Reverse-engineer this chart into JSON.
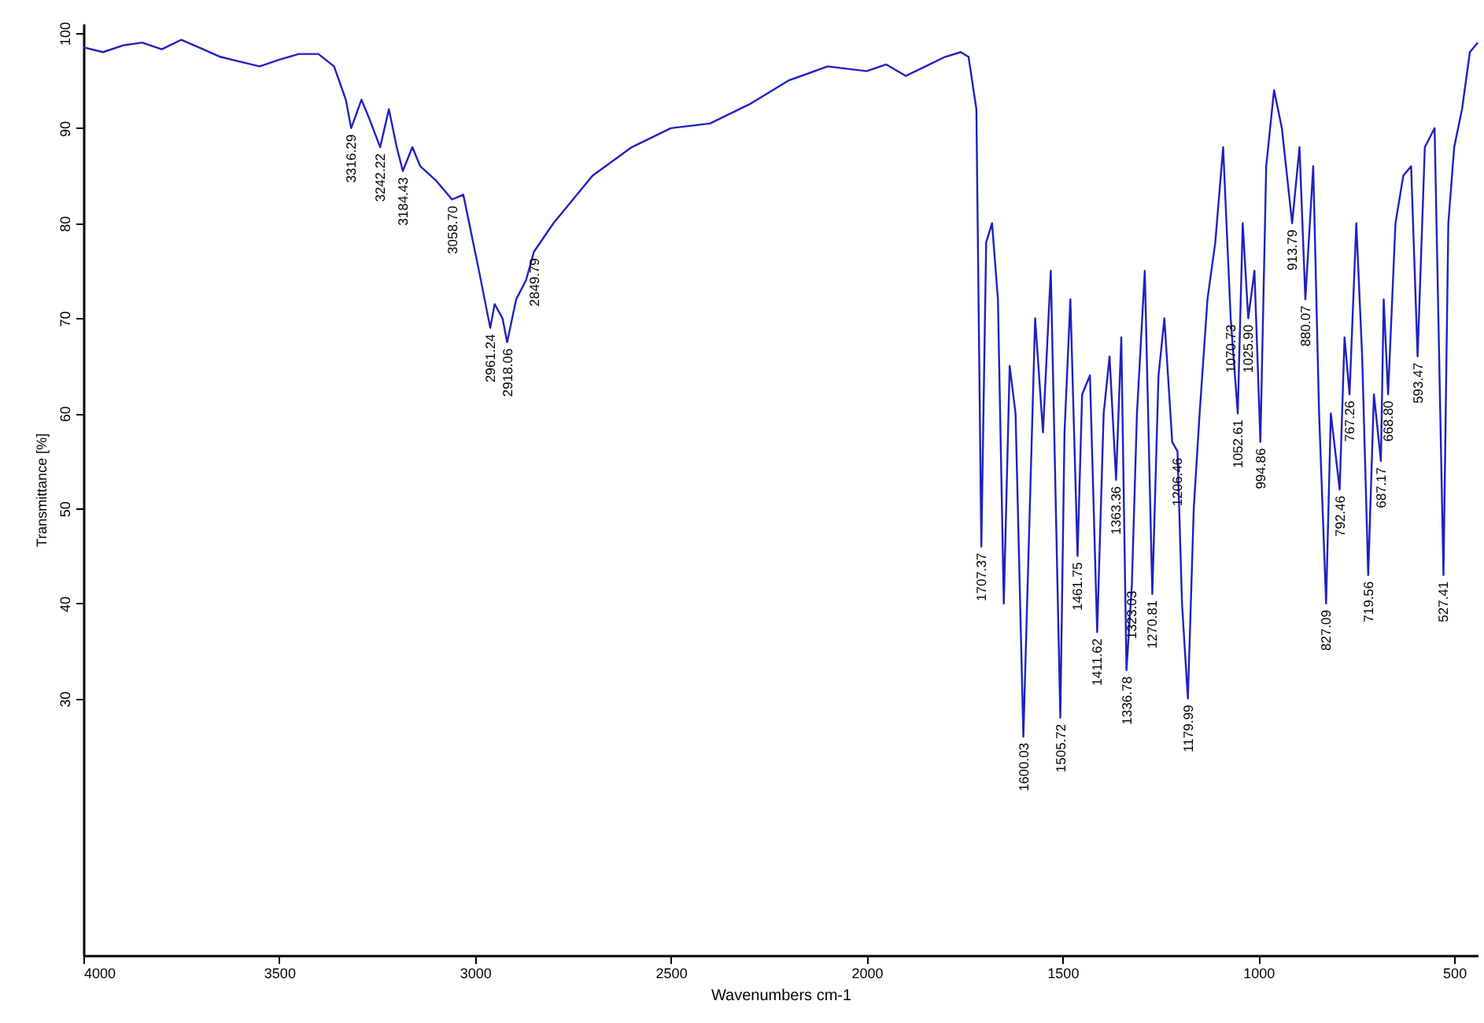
{
  "chart_data": {
    "type": "line",
    "xlabel": "Wavenumbers cm-1",
    "ylabel": "Transmittance [%]",
    "x": [
      4000,
      3950,
      3900,
      3850,
      3800,
      3750,
      3700,
      3650,
      3600,
      3550,
      3500,
      3450,
      3400,
      3360,
      3330,
      3316.29,
      3290,
      3270,
      3242.22,
      3220,
      3200,
      3184.43,
      3160,
      3140,
      3100,
      3058.7,
      3030,
      3010,
      2990,
      2961.24,
      2950,
      2930,
      2918.06,
      2895,
      2870,
      2849.79,
      2800,
      2700,
      2600,
      2500,
      2400,
      2300,
      2200,
      2100,
      2000,
      1950,
      1900,
      1850,
      1800,
      1760,
      1740,
      1720,
      1707.37,
      1695,
      1680,
      1665,
      1650,
      1635,
      1620,
      1600.03,
      1585,
      1570,
      1550,
      1530,
      1505.72,
      1495,
      1480,
      1461.75,
      1450,
      1430,
      1411.62,
      1395,
      1380,
      1363.36,
      1350,
      1336.78,
      1323.03,
      1310,
      1290,
      1270.81,
      1255,
      1240,
      1220,
      1206.46,
      1195,
      1179.99,
      1165,
      1150,
      1130,
      1110,
      1090,
      1070.73,
      1052.61,
      1040,
      1025.9,
      1010,
      994.86,
      980,
      960,
      940,
      913.79,
      895,
      880.07,
      860,
      845,
      827.09,
      815,
      792.46,
      780,
      767.26,
      750,
      735,
      719.56,
      705,
      687.17,
      680,
      668.8,
      650,
      630,
      610,
      593.47,
      575,
      550,
      527.41,
      515,
      500,
      480,
      460,
      440
    ],
    "series": [
      {
        "color": "#2020c0",
        "values": [
          98.5,
          98,
          98.7,
          99,
          98.3,
          99.3,
          98.4,
          97.5,
          97,
          96.5,
          97.2,
          97.8,
          97.8,
          96.5,
          93,
          90,
          93,
          91,
          88,
          92,
          88,
          85.5,
          88,
          86,
          84.5,
          82.5,
          83,
          79,
          75,
          69,
          71.5,
          70,
          67.5,
          72,
          74,
          77,
          80,
          85,
          88,
          90,
          90.5,
          92.5,
          95,
          96.5,
          96,
          96.7,
          95.5,
          96.5,
          97.5,
          98,
          97.5,
          92,
          46,
          78,
          80,
          72,
          40,
          65,
          60,
          26,
          48,
          70,
          58,
          75,
          28,
          58,
          72,
          45,
          62,
          64,
          37,
          60,
          66,
          53,
          68,
          33,
          42,
          60,
          75,
          41,
          64,
          70,
          57,
          56,
          40,
          30,
          50,
          60,
          72,
          78,
          88,
          70,
          60,
          80,
          70,
          75,
          57,
          86,
          94,
          90,
          80,
          88,
          72,
          86,
          60,
          40,
          60,
          52,
          68,
          62,
          80,
          66,
          43,
          62,
          55,
          72,
          62,
          80,
          85,
          86,
          66,
          88,
          90,
          43,
          80,
          88,
          92,
          98,
          99
        ]
      }
    ],
    "annotations": [
      {
        "text": "3316.29",
        "x": 3316.29,
        "y": 90
      },
      {
        "text": "3242.22",
        "x": 3242.22,
        "y": 88
      },
      {
        "text": "3184.43",
        "x": 3184.43,
        "y": 85.5
      },
      {
        "text": "3058.70",
        "x": 3058.7,
        "y": 82.5
      },
      {
        "text": "2961.24",
        "x": 2961.24,
        "y": 69
      },
      {
        "text": "2918.06",
        "x": 2918.06,
        "y": 67.5
      },
      {
        "text": "2849.79",
        "x": 2849.79,
        "y": 77
      },
      {
        "text": "1707.37",
        "x": 1707.37,
        "y": 46
      },
      {
        "text": "1600.03",
        "x": 1600.03,
        "y": 26
      },
      {
        "text": "1505.72",
        "x": 1505.72,
        "y": 28
      },
      {
        "text": "1461.75",
        "x": 1461.75,
        "y": 45
      },
      {
        "text": "1411.62",
        "x": 1411.62,
        "y": 37
      },
      {
        "text": "1363.36",
        "x": 1363.36,
        "y": 53
      },
      {
        "text": "1336.78",
        "x": 1336.78,
        "y": 33
      },
      {
        "text": "1323.03",
        "x": 1323.03,
        "y": 42
      },
      {
        "text": "1270.81",
        "x": 1270.81,
        "y": 41
      },
      {
        "text": "1206.46",
        "x": 1206.46,
        "y": 56
      },
      {
        "text": "1179.99",
        "x": 1179.99,
        "y": 30
      },
      {
        "text": "1070.73",
        "x": 1070.73,
        "y": 70
      },
      {
        "text": "1052.61",
        "x": 1052.61,
        "y": 60
      },
      {
        "text": "1025.90",
        "x": 1025.9,
        "y": 70
      },
      {
        "text": "994.86",
        "x": 994.86,
        "y": 57
      },
      {
        "text": "913.79",
        "x": 913.79,
        "y": 80
      },
      {
        "text": "880.07",
        "x": 880.07,
        "y": 72
      },
      {
        "text": "827.09",
        "x": 827.09,
        "y": 40
      },
      {
        "text": "792.46",
        "x": 792.46,
        "y": 52
      },
      {
        "text": "767.26",
        "x": 767.26,
        "y": 62
      },
      {
        "text": "719.56",
        "x": 719.56,
        "y": 43
      },
      {
        "text": "687.17",
        "x": 687.17,
        "y": 55
      },
      {
        "text": "668.80",
        "x": 668.8,
        "y": 62
      },
      {
        "text": "593.47",
        "x": 593.47,
        "y": 66
      },
      {
        "text": "527.41",
        "x": 527.41,
        "y": 43
      }
    ],
    "xlim": [
      4000,
      440
    ],
    "xticks": [
      4000,
      3500,
      3000,
      2500,
      2000,
      1500,
      1000,
      500
    ],
    "ylim": [
      3,
      101
    ],
    "yticks": [
      30,
      40,
      50,
      60,
      70,
      80,
      90,
      100
    ],
    "grid": false,
    "marker": "none",
    "line_style": "solid"
  }
}
